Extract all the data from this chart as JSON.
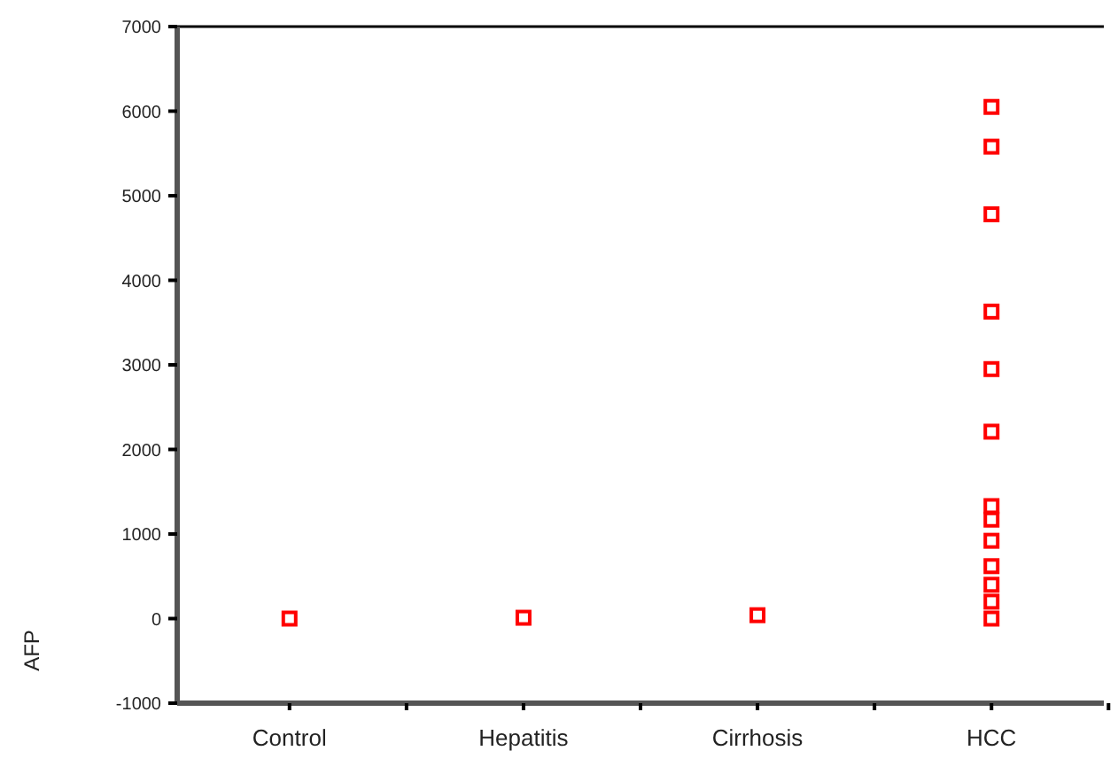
{
  "chart_data": {
    "type": "scatter",
    "ylabel": "AFP",
    "categories": [
      "Control",
      "Hepatitis",
      "Cirrhosis",
      "HCC"
    ],
    "series": [
      {
        "color": "#ff0000",
        "x": [
          "Control",
          "Hepatitis",
          "Cirrhosis",
          "HCC",
          "HCC",
          "HCC",
          "HCC",
          "HCC",
          "HCC",
          "HCC",
          "HCC",
          "HCC",
          "HCC",
          "HCC",
          "HCC",
          "HCC"
        ],
        "values": [
          0,
          10,
          40,
          6050,
          5580,
          4780,
          3630,
          2950,
          2210,
          1330,
          1170,
          920,
          620,
          400,
          200,
          0
        ]
      }
    ],
    "ylim": [
      -1000,
      7000
    ],
    "yticks": [
      -1000,
      0,
      1000,
      2000,
      3000,
      4000,
      5000,
      6000,
      7000
    ],
    "marker": "square"
  }
}
